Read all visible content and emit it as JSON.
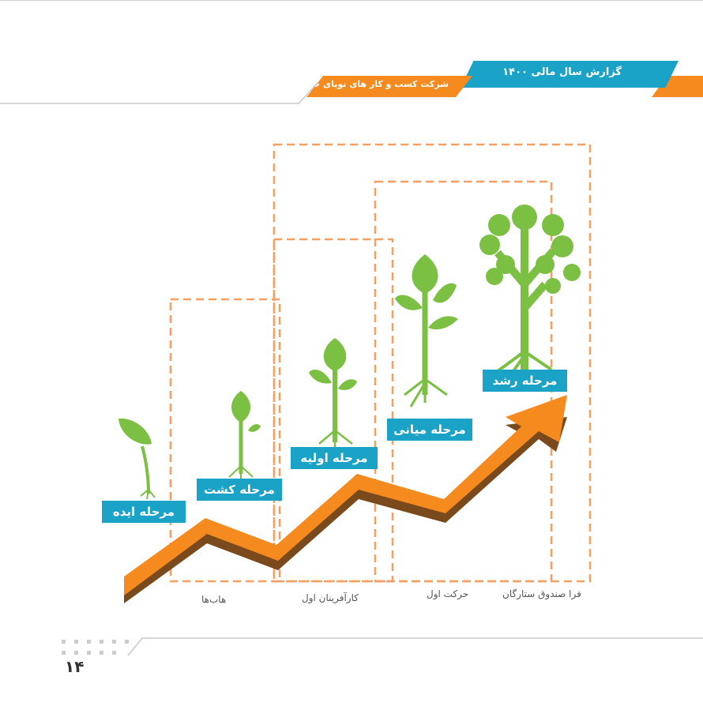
{
  "header": {
    "report_title": "گزارش سال مالی ۱۴۰۰",
    "company_name": "شرکت کسب و کار های نوپای حرکت اول"
  },
  "stages": [
    {
      "label": "مرحله ایده",
      "icon": "sprout-icon"
    },
    {
      "label": "مرحله کشت",
      "icon": "seedling-icon"
    },
    {
      "label": "مرحله اولیه",
      "icon": "young-plant-icon"
    },
    {
      "label": "مرحله میانی",
      "icon": "sapling-icon"
    },
    {
      "label": "مرحله رشد",
      "icon": "tree-icon"
    }
  ],
  "programs": [
    "هاب‌ها",
    "کارآفرینان اول",
    "حرکت اول",
    "فرا صندوق ستارگان"
  ],
  "page_number": "۱۴",
  "colors": {
    "accent_blue": "#1aa3c6",
    "accent_orange": "#f58a1f",
    "leaf_green": "#7bc043",
    "arrow_shadow": "#7a4a1c"
  }
}
